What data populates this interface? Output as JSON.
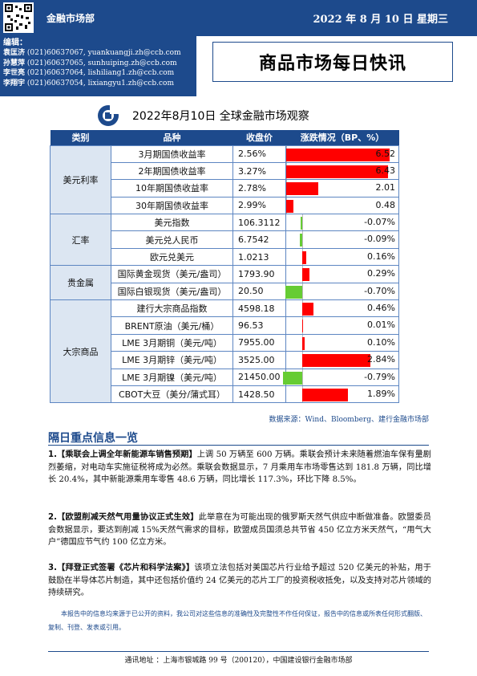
{
  "header": {
    "department": "金融市场部",
    "date": "2022 年 8 月 10 日  星期三"
  },
  "editors": {
    "title": "编辑：",
    "rows": [
      {
        "name": "袁匡济",
        "phone": "(021)60637067,",
        "email": "yuankuangji.zh@ccb.com"
      },
      {
        "name": "孙慧萍",
        "phone": "(021)60637065,",
        "email": "sunhuiping.zh@ccb.com"
      },
      {
        "name": "李世亮",
        "phone": "(021)60637064,",
        "email": "lishiliang1.zh@ccb.com"
      },
      {
        "name": "李翔宇",
        "phone": "(021)60637054,",
        "email": "lixiangyu1.zh@ccb.com"
      }
    ]
  },
  "report_title": "商品市场每日快讯",
  "table": {
    "title": "2022年8月10日 全球金融市场观察",
    "headers": [
      "类别",
      "品种",
      "收盘价",
      "涨跌情况（BP、%）"
    ],
    "groups": [
      {
        "category": "美元利率",
        "rows": [
          {
            "item": "3月期国债收益率",
            "close": "2.56%",
            "change": "6.52",
            "change_value": 6.52
          },
          {
            "item": "2年期国债收益率",
            "close": "3.27%",
            "change": "6.43",
            "change_value": 6.43
          },
          {
            "item": "10年期国债收益率",
            "close": "2.78%",
            "change": "2.01",
            "change_value": 2.01
          },
          {
            "item": "30年期国债收益率",
            "close": "2.99%",
            "change": "0.48",
            "change_value": 0.48
          }
        ]
      },
      {
        "category": "汇率",
        "rows": [
          {
            "item": "美元指数",
            "close": "106.3112",
            "change": "-0.07%",
            "change_value": -0.07
          },
          {
            "item": "美元兑人民币",
            "close": "6.7542",
            "change": "-0.09%",
            "change_value": -0.09
          },
          {
            "item": "欧元兑美元",
            "close": "1.0213",
            "change": "0.16%",
            "change_value": 0.16
          }
        ]
      },
      {
        "category": "贵金属",
        "rows": [
          {
            "item": "国际黄金现货（美元/盎司）",
            "close": "1793.90",
            "change": "0.29%",
            "change_value": 0.29
          },
          {
            "item": "国际白银现货（美元/盎司）",
            "close": "20.50",
            "change": "-0.70%",
            "change_value": -0.7
          }
        ]
      },
      {
        "category": "大宗商品",
        "rows": [
          {
            "item": "建行大宗商品指数",
            "close": "4598.18",
            "change": "0.46%",
            "change_value": 0.46
          },
          {
            "item": "BRENT原油（美元/桶）",
            "close": "96.53",
            "change": "0.01%",
            "change_value": 0.01
          },
          {
            "item": "LME 3月期铜（美元/吨）",
            "close": "7955.00",
            "change": "0.10%",
            "change_value": 0.1
          },
          {
            "item": "LME 3月期锌（美元/吨）",
            "close": "3525.00",
            "change": "2.84%",
            "change_value": 2.84
          },
          {
            "item": "LME 3月期镍（美元/吨）",
            "close": "21450.00",
            "change": "-0.79%",
            "change_value": -0.79
          },
          {
            "item": "CBOT大豆（美分/蒲式耳）",
            "close": "1428.50",
            "change": "1.89%",
            "change_value": 1.89
          }
        ]
      }
    ],
    "source": "数据来源：Wind、Bloomberg、建行金融市场部"
  },
  "news": {
    "section_title": "隔日重点信息一览",
    "items": [
      {
        "num": "1.",
        "headline": "【乘联会上调全年新能源车销售预期】",
        "body": "上调 50 万辆至 600 万辆。乘联会预计未来随着燃油车保有量剧烈萎缩，对电动车实施征税将成为必然。乘联会数据显示，7 月乘用车市场零售达到 181.8 万辆，同比增长 20.4%，其中新能源乘用车零售 48.6 万辆，同比增长 117.3%，环比下降 8.5%。"
      },
      {
        "num": "2.",
        "headline": "【欧盟削减天然气用量协议正式生效】",
        "body": "此举意在为可能出现的俄罗斯天然气供应中断做准备。欧盟委员会数据显示，要达到削减 15%天然气需求的目标，欧盟成员国须总共节省 450 亿立方米天然气，“用气大户”德国应节气约 100 亿立方米。"
      },
      {
        "num": "3.",
        "headline": "【拜登正式签署《芯片和科学法案》】",
        "body": "该项立法包括对美国芯片行业给予超过 520 亿美元的补贴，用于鼓励在半导体芯片制造，其中还包括价值约 24 亿美元的芯片工厂的投资税收抵免，以及支持对芯片领域的持续研究。"
      }
    ]
  },
  "disclaimer": "本报告中的信息均来源于已公开的资料，我公司对这些信息的准确性及完整性不作任何保证，报告中的信息或所表任何形式翻版、复制、刊登、发表或引用。",
  "footer": "通讯地址 ：上海市银城路 99 号（200120），中国建设银行金融市场部",
  "colors": {
    "brand": "#1d4a8c",
    "up": "#ff0000",
    "down": "#66cc33"
  },
  "icons": [
    "qr-code-icon",
    "ccb-logo-icon"
  ]
}
